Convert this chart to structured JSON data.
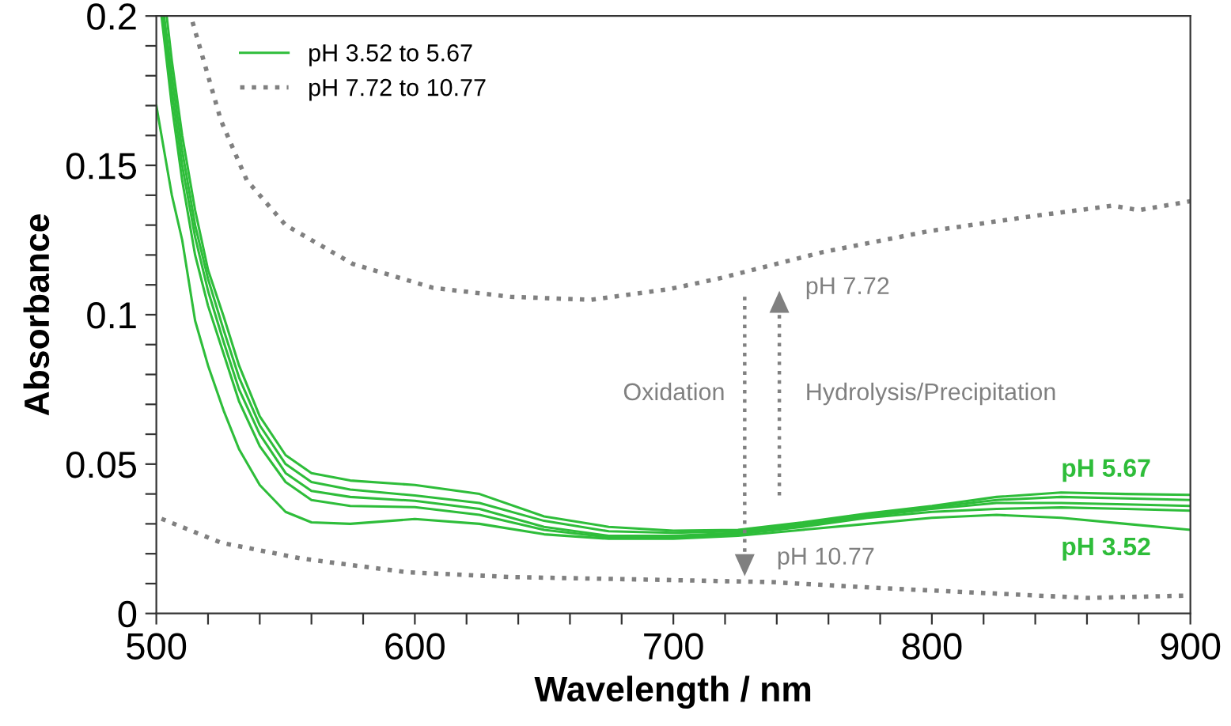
{
  "chart_data": {
    "type": "line",
    "xlabel": "Wavelength / nm",
    "ylabel": "Absorbance",
    "xlim": [
      500,
      900
    ],
    "ylim": [
      0,
      0.2
    ],
    "xticks": [
      500,
      {
        "value": 520,
        "label": null
      },
      {
        "value": 540,
        "label": null
      },
      {
        "value": 560,
        "label": null
      },
      {
        "value": 580,
        "label": null
      },
      600,
      {
        "value": 620,
        "label": null
      },
      {
        "value": 640,
        "label": null
      },
      {
        "value": 660,
        "label": null
      },
      {
        "value": 680,
        "label": null
      },
      700,
      {
        "value": 720,
        "label": null
      },
      {
        "value": 740,
        "label": null
      },
      {
        "value": 760,
        "label": null
      },
      {
        "value": 780,
        "label": null
      },
      800,
      {
        "value": 820,
        "label": null
      },
      {
        "value": 840,
        "label": null
      },
      {
        "value": 860,
        "label": null
      },
      {
        "value": 880,
        "label": null
      },
      900
    ],
    "yticks": [
      0,
      {
        "value": 0.01,
        "label": null
      },
      {
        "value": 0.02,
        "label": null
      },
      {
        "value": 0.03,
        "label": null
      },
      {
        "value": 0.04,
        "label": null
      },
      0.05,
      {
        "value": 0.06,
        "label": null
      },
      {
        "value": 0.07,
        "label": null
      },
      {
        "value": 0.08,
        "label": null
      },
      {
        "value": 0.09,
        "label": null
      },
      0.1,
      {
        "value": 0.11,
        "label": null
      },
      {
        "value": 0.12,
        "label": null
      },
      {
        "value": 0.13,
        "label": null
      },
      {
        "value": 0.14,
        "label": null
      },
      0.15,
      {
        "value": 0.16,
        "label": null
      },
      {
        "value": 0.17,
        "label": null
      },
      {
        "value": 0.18,
        "label": null
      },
      {
        "value": 0.19,
        "label": null
      },
      0.2
    ],
    "grid": false,
    "legend": "top left",
    "marker": "none",
    "series": [
      {
        "name": "pH 3.52 to 5.67",
        "color": "#2ebd3a",
        "line_style": "solid",
        "x": [
          504,
          506,
          510,
          515,
          520,
          526,
          532,
          540,
          550,
          560,
          575,
          600,
          625,
          650,
          675,
          700,
          725,
          750,
          775,
          800,
          825,
          850,
          875,
          900
        ],
        "values": [
          0.2,
          0.185,
          0.16,
          0.135,
          0.115,
          0.0995,
          0.083,
          0.066,
          0.053,
          0.047,
          0.0445,
          0.043,
          0.04,
          0.0325,
          0.029,
          0.0277,
          0.028,
          0.0305,
          0.0335,
          0.036,
          0.039,
          0.0405,
          0.04,
          0.0397
        ]
      },
      {
        "color": "#2ebd3a",
        "line_style": "solid",
        "x": [
          503,
          506,
          510,
          515,
          520,
          526,
          532,
          540,
          550,
          560,
          575,
          600,
          625,
          650,
          675,
          700,
          725,
          750,
          775,
          800,
          825,
          850,
          875,
          900
        ],
        "values": [
          0.2,
          0.18,
          0.155,
          0.13,
          0.112,
          0.095,
          0.079,
          0.063,
          0.05,
          0.044,
          0.0415,
          0.0395,
          0.037,
          0.031,
          0.0275,
          0.027,
          0.0275,
          0.03,
          0.033,
          0.0355,
          0.038,
          0.039,
          0.0385,
          0.038
        ]
      },
      {
        "color": "#2ebd3a",
        "line_style": "solid",
        "x": [
          502.5,
          506,
          510,
          515,
          520,
          526,
          532,
          540,
          550,
          560,
          575,
          600,
          625,
          650,
          675,
          700,
          725,
          750,
          775,
          800,
          825,
          850,
          875,
          900
        ],
        "values": [
          0.2,
          0.175,
          0.15,
          0.126,
          0.108,
          0.091,
          0.075,
          0.06,
          0.047,
          0.041,
          0.039,
          0.0377,
          0.035,
          0.029,
          0.026,
          0.026,
          0.027,
          0.0295,
          0.0325,
          0.035,
          0.037,
          0.037,
          0.0365,
          0.036
        ]
      },
      {
        "color": "#2ebd3a",
        "line_style": "solid",
        "x": [
          502,
          506,
          510,
          515,
          520,
          526,
          532,
          540,
          550,
          560,
          575,
          600,
          625,
          650,
          675,
          700,
          725,
          750,
          775,
          800,
          825,
          850,
          875,
          900
        ],
        "values": [
          0.2,
          0.17,
          0.145,
          0.12,
          0.103,
          0.087,
          0.071,
          0.056,
          0.044,
          0.038,
          0.036,
          0.0356,
          0.033,
          0.028,
          0.0255,
          0.0255,
          0.0265,
          0.029,
          0.032,
          0.034,
          0.035,
          0.0355,
          0.035,
          0.0344
        ]
      },
      {
        "color": "#2ebd3a",
        "line_style": "solid",
        "x": [
          500,
          503,
          506,
          510,
          515,
          520,
          526,
          532,
          540,
          550,
          560,
          575,
          600,
          625,
          650,
          675,
          700,
          725,
          750,
          775,
          800,
          825,
          850,
          875,
          900
        ],
        "values": [
          0.17,
          0.155,
          0.14,
          0.125,
          0.098,
          0.083,
          0.068,
          0.055,
          0.043,
          0.034,
          0.0305,
          0.03,
          0.0316,
          0.03,
          0.0265,
          0.025,
          0.025,
          0.026,
          0.028,
          0.03,
          0.032,
          0.033,
          0.032,
          0.03,
          0.028
        ]
      },
      {
        "name": "pH 7.72 to 10.77",
        "color": "#808080",
        "line_style": "dotted",
        "x": [
          514,
          525,
          535,
          550,
          576,
          607,
          637,
          668,
          698,
          717,
          758,
          799,
          839,
          870,
          880,
          900
        ],
        "values": [
          0.198,
          0.165,
          0.145,
          0.13,
          0.117,
          0.109,
          0.106,
          0.105,
          0.1085,
          0.112,
          0.121,
          0.128,
          0.133,
          0.1365,
          0.135,
          0.138
        ]
      },
      {
        "color": "#808080",
        "line_style": "dotted",
        "x": [
          502,
          525,
          556,
          597,
          637,
          698,
          738,
          778,
          819,
          860,
          900
        ],
        "values": [
          0.0317,
          0.0237,
          0.0184,
          0.0138,
          0.0122,
          0.0112,
          0.0105,
          0.0086,
          0.0069,
          0.0052,
          0.006
        ]
      }
    ],
    "annotations": [
      "pH 7.72",
      "Oxidation",
      "Hydrolysis/Precipitation",
      "pH 5.67",
      "pH 10.77",
      "pH 3.52"
    ]
  }
}
